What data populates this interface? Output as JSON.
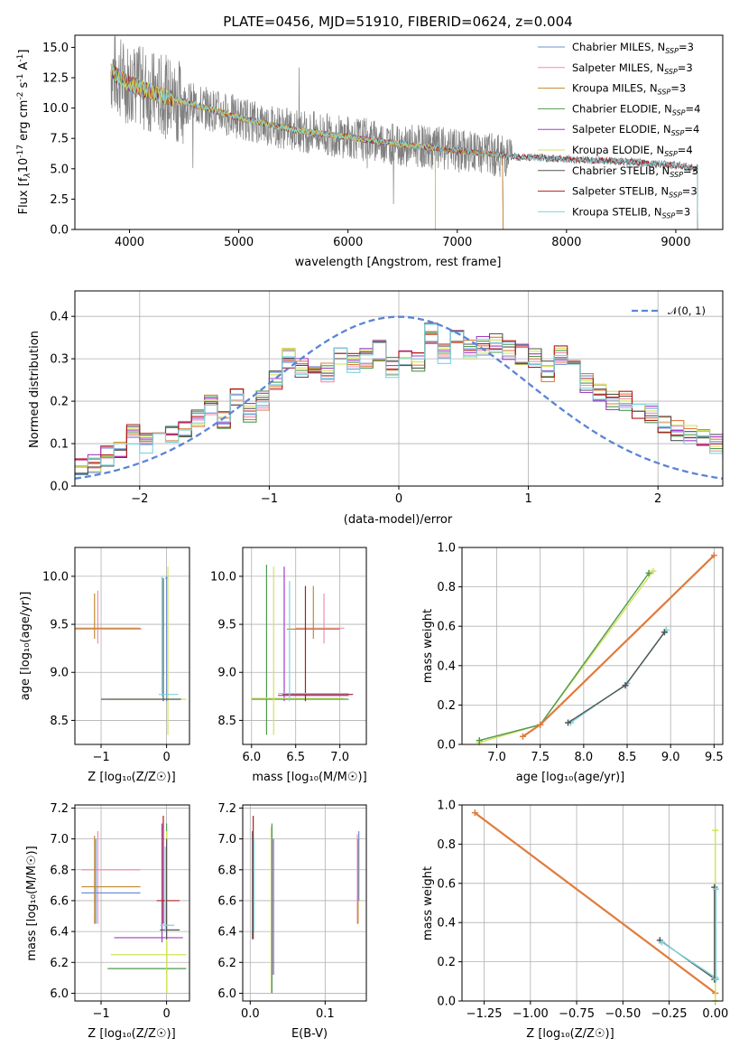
{
  "colors": {
    "model": [
      "#6f8fd3",
      "#f08fb0",
      "#c28a2e",
      "#4f9a4f",
      "#a43bc7",
      "#d2e35a",
      "#555555",
      "#b21b1b",
      "#7ed3df"
    ],
    "spectrum": "#808080",
    "normal_curve": "#5b84d6",
    "orange": "#e07b3c"
  },
  "chart_data": [
    {
      "type": "line",
      "title": "PLATE=0456, MJD=51910, FIBERID=0624, z=0.004",
      "xlabel": "wavelength [Angstrom, rest frame]",
      "ylabel": "Flux [f",
      "ylabel_parts": [
        "λ",
        "10",
        "-17",
        " erg cm",
        "-2",
        " s",
        "-1",
        " A",
        "-1",
        "]"
      ],
      "xlim": [
        3500,
        9430
      ],
      "ylim": [
        0,
        16
      ],
      "xticks": [
        "4000",
        "5000",
        "6000",
        "7000",
        "8000",
        "9000"
      ],
      "yticks": [
        "0.0",
        "2.5",
        "5.0",
        "7.5",
        "10.0",
        "12.5",
        "15.0"
      ],
      "legend_position": "top-right",
      "series": [
        {
          "name": "Chabrier MILES, N",
          "sub": "SSP",
          "suffix": "=3"
        },
        {
          "name": "Salpeter MILES, N",
          "sub": "SSP",
          "suffix": "=3"
        },
        {
          "name": "Kroupa MILES, N",
          "sub": "SSP",
          "suffix": "=3"
        },
        {
          "name": "Chabrier ELODIE, N",
          "sub": "SSP",
          "suffix": "=4"
        },
        {
          "name": "Salpeter ELODIE, N",
          "sub": "SSP",
          "suffix": "=4"
        },
        {
          "name": "Kroupa ELODIE, N",
          "sub": "SSP",
          "suffix": "=4"
        },
        {
          "name": "Chabrier STELIB, N",
          "sub": "SSP",
          "suffix": "=3"
        },
        {
          "name": "Salpeter STELIB, N",
          "sub": "SSP",
          "suffix": "=3"
        },
        {
          "name": "Kroupa STELIB, N",
          "sub": "SSP",
          "suffix": "=3"
        }
      ],
      "continuum": [
        [
          3830,
          13.0
        ],
        [
          4000,
          12.0
        ],
        [
          4300,
          11.0
        ],
        [
          4700,
          10.0
        ],
        [
          5000,
          9.2
        ],
        [
          5500,
          8.2
        ],
        [
          6000,
          7.6
        ],
        [
          6500,
          7.0
        ],
        [
          7000,
          6.5
        ],
        [
          7500,
          6.0
        ],
        [
          8000,
          5.8
        ],
        [
          8500,
          5.6
        ],
        [
          9000,
          5.3
        ],
        [
          9200,
          5.0
        ]
      ],
      "model_ranges": {
        "MILES": [
          3830,
          7420
        ],
        "ELODIE": [
          3830,
          6800
        ],
        "STELIB": [
          3830,
          9200
        ]
      }
    },
    {
      "type": "area",
      "xlabel": "(data-model)/error",
      "ylabel": "Normed distribution",
      "xlim": [
        -2.5,
        2.5
      ],
      "ylim": [
        0,
        0.46
      ],
      "xticks": [
        "−2",
        "−1",
        "0",
        "1",
        "2"
      ],
      "yticks": [
        "0.0",
        "0.1",
        "0.2",
        "0.3",
        "0.4"
      ],
      "legend": "𝒩(0, 1)",
      "legend_position": "top-right",
      "bin_width": 0.1,
      "histogram": [
        0.04,
        0.05,
        0.07,
        0.09,
        0.12,
        0.1,
        0.11,
        0.12,
        0.14,
        0.16,
        0.19,
        0.16,
        0.21,
        0.17,
        0.2,
        0.25,
        0.3,
        0.28,
        0.26,
        0.27,
        0.31,
        0.29,
        0.3,
        0.32,
        0.28,
        0.3,
        0.29,
        0.36,
        0.31,
        0.35,
        0.32,
        0.33,
        0.34,
        0.32,
        0.31,
        0.3,
        0.27,
        0.31,
        0.29,
        0.24,
        0.22,
        0.2,
        0.2,
        0.18,
        0.17,
        0.14,
        0.13,
        0.12,
        0.12,
        0.1,
        0.09,
        0.09,
        0.08,
        0.06,
        0.05,
        0.05,
        0.05,
        0.04,
        0.03,
        0.04
      ]
    },
    {
      "type": "scatter",
      "xlabel": "Z [log₁₀(Z/Z☉)]",
      "ylabel": "age  [log₁₀(age/yr)]",
      "xlim": [
        -1.4,
        0.35
      ],
      "ylim": [
        8.25,
        10.3
      ],
      "xticks": [
        "−1",
        "0"
      ],
      "yticks": [
        "8.5",
        "9.0",
        "9.5",
        "10.0"
      ],
      "crosses": [
        {
          "x": [
            -1.4,
            -0.38
          ],
          "y": 9.45,
          "yr": [
            9.3,
            9.85
          ],
          "xc": -1.05,
          "c": 1
        },
        {
          "x": [
            -1.4,
            -0.4
          ],
          "y": 9.46,
          "yr": [
            9.35,
            9.82
          ],
          "xc": -1.1,
          "c": 2
        },
        {
          "x": [
            -0.02,
            0.02
          ],
          "y": 9.98,
          "yr": [
            8.7,
            10.0
          ],
          "xc": 0.0,
          "c": 0
        },
        {
          "x": [
            -0.9,
            0.3
          ],
          "y": 8.72,
          "yr": [
            8.35,
            10.1
          ],
          "xc": 0.02,
          "c": 5
        },
        {
          "x": [
            -1.0,
            0.22
          ],
          "y": 8.72,
          "yr": [
            8.7,
            9.98
          ],
          "xc": -0.05,
          "c": 6
        },
        {
          "x": [
            -0.12,
            0.18
          ],
          "y": 8.77,
          "yr": [
            8.75,
            10.0
          ],
          "xc": -0.07,
          "c": 8
        }
      ]
    },
    {
      "type": "scatter",
      "xlabel": "mass [log₁₀(M/M☉)]",
      "ylabel": "",
      "xlim": [
        5.9,
        7.3
      ],
      "ylim": [
        8.25,
        10.3
      ],
      "xticks": [
        "6.0",
        "6.5",
        "7.0"
      ],
      "yticks": [
        "8.5",
        "9.0",
        "9.5",
        "10.0"
      ],
      "crosses": [
        {
          "x": [
            6.5,
            7.05
          ],
          "y": 9.46,
          "yr": [
            9.3,
            9.82
          ],
          "xc": 6.82,
          "c": 1
        },
        {
          "x": [
            6.4,
            7.0
          ],
          "y": 9.45,
          "yr": [
            9.35,
            9.9
          ],
          "xc": 6.7,
          "c": 2
        },
        {
          "x": [
            6.0,
            7.1
          ],
          "y": 8.72,
          "yr": [
            8.35,
            10.12
          ],
          "xc": 6.17,
          "c": 3
        },
        {
          "x": [
            6.3,
            7.1
          ],
          "y": 8.76,
          "yr": [
            8.7,
            10.1
          ],
          "xc": 6.37,
          "c": 4
        },
        {
          "x": [
            6.0,
            7.05
          ],
          "y": 8.73,
          "yr": [
            8.35,
            10.1
          ],
          "xc": 6.25,
          "c": 5
        },
        {
          "x": [
            6.35,
            7.15
          ],
          "y": 8.77,
          "yr": [
            8.7,
            9.9
          ],
          "xc": 6.61,
          "c": 7
        },
        {
          "x": [
            6.3,
            7.1
          ],
          "y": 8.78,
          "yr": [
            8.7,
            9.95
          ],
          "xc": 6.43,
          "c": 8
        }
      ]
    },
    {
      "type": "scatter",
      "xlabel": "age  [log₁₀(age/yr)]",
      "ylabel": "mass weight",
      "xlim": [
        6.6,
        9.6
      ],
      "ylim": [
        0,
        1
      ],
      "xticks": [
        "7.0",
        "7.5",
        "8.0",
        "8.5",
        "9.0",
        "9.5"
      ],
      "yticks": [
        "0.0",
        "0.2",
        "0.4",
        "0.6",
        "0.8",
        "1.0"
      ],
      "lines": [
        {
          "pts": [
            [
              6.8,
              0.01
            ],
            [
              7.5,
              0.1
            ],
            [
              8.8,
              0.88
            ]
          ],
          "c": 5
        },
        {
          "pts": [
            [
              6.8,
              0.02
            ],
            [
              7.5,
              0.1
            ],
            [
              8.75,
              0.87
            ]
          ],
          "c": 3
        },
        {
          "pts": [
            [
              7.3,
              0.04
            ],
            [
              7.5,
              0.1
            ],
            [
              9.5,
              0.96
            ]
          ],
          "c": 9
        },
        {
          "pts": [
            [
              7.85,
              0.11
            ],
            [
              8.5,
              0.31
            ],
            [
              8.95,
              0.58
            ]
          ],
          "c": 8
        },
        {
          "pts": [
            [
              7.82,
              0.11
            ],
            [
              8.48,
              0.3
            ],
            [
              8.93,
              0.57
            ]
          ],
          "c": 6
        }
      ]
    },
    {
      "type": "scatter",
      "xlabel": "Z [log₁₀(Z/Z☉)]",
      "ylabel": "mass [log₁₀(M/M☉)]",
      "xlim": [
        -1.4,
        0.35
      ],
      "ylim": [
        5.95,
        7.22
      ],
      "xticks": [
        "−1",
        "0"
      ],
      "yticks": [
        "6.0",
        "6.2",
        "6.4",
        "6.6",
        "6.8",
        "7.0",
        "7.2"
      ],
      "crosses": [
        {
          "x": [
            -1.3,
            -0.4
          ],
          "y": 6.8,
          "yr": [
            6.45,
            7.05
          ],
          "xc": -1.05,
          "c": 1
        },
        {
          "x": [
            -1.3,
            -0.4
          ],
          "y": 6.69,
          "yr": [
            6.45,
            7.02
          ],
          "xc": -1.1,
          "c": 2
        },
        {
          "x": [
            -1.3,
            -0.4
          ],
          "y": 6.65,
          "yr": [
            6.45,
            7.0
          ],
          "xc": -1.08,
          "c": 0
        },
        {
          "x": [
            -0.9,
            0.3
          ],
          "y": 6.16,
          "yr": [
            6.0,
            7.1
          ],
          "xc": 0.0,
          "c": 3
        },
        {
          "x": [
            -0.85,
            0.3
          ],
          "y": 6.25,
          "yr": [
            6.0,
            7.05
          ],
          "xc": 0.0,
          "c": 5
        },
        {
          "x": [
            -0.8,
            0.25
          ],
          "y": 6.36,
          "yr": [
            6.33,
            7.1
          ],
          "xc": -0.07,
          "c": 4
        },
        {
          "x": [
            -0.15,
            0.2
          ],
          "y": 6.6,
          "yr": [
            6.45,
            7.15
          ],
          "xc": -0.05,
          "c": 7
        },
        {
          "x": [
            -0.1,
            0.2
          ],
          "y": 6.41,
          "yr": [
            6.35,
            7.0
          ],
          "xc": 0.0,
          "c": 6
        },
        {
          "x": [
            -0.1,
            0.12
          ],
          "y": 6.44,
          "yr": [
            6.4,
            6.95
          ],
          "xc": -0.02,
          "c": 8
        }
      ]
    },
    {
      "type": "scatter",
      "xlabel": "E(B-V)",
      "ylabel": "",
      "xlim": [
        -0.01,
        0.155
      ],
      "ylim": [
        5.95,
        7.22
      ],
      "xticks": [
        "0.0",
        "0.1"
      ],
      "yticks": [
        "6.0",
        "6.2",
        "6.4",
        "6.6",
        "6.8",
        "7.0",
        "7.2"
      ],
      "vlines": [
        {
          "x": 0.004,
          "y": [
            6.35,
            7.15
          ],
          "c": 7
        },
        {
          "x": 0.003,
          "y": [
            6.35,
            7.05
          ],
          "c": 6
        },
        {
          "x": 0.005,
          "y": [
            6.4,
            7.0
          ],
          "c": 8
        },
        {
          "x": 0.028,
          "y": [
            6.0,
            7.08
          ],
          "c": 5
        },
        {
          "x": 0.029,
          "y": [
            6.0,
            7.1
          ],
          "c": 3
        },
        {
          "x": 0.031,
          "y": [
            6.12,
            7.0
          ],
          "c": 4
        },
        {
          "x": 0.143,
          "y": [
            6.45,
            7.03
          ],
          "c": 1
        },
        {
          "x": 0.144,
          "y": [
            6.45,
            7.0
          ],
          "c": 2
        },
        {
          "x": 0.145,
          "y": [
            6.6,
            7.05
          ],
          "c": 0
        }
      ]
    },
    {
      "type": "scatter",
      "xlabel": "Z [log₁₀(Z/Z☉)]",
      "ylabel": "mass weight",
      "xlim": [
        -1.37,
        0.04
      ],
      "ylim": [
        0,
        1
      ],
      "xticks": [
        "−1.25",
        "−1.00",
        "−0.75",
        "−0.50",
        "−0.25",
        "0.00"
      ],
      "yticks": [
        "0.0",
        "0.2",
        "0.4",
        "0.6",
        "0.8",
        "1.0"
      ],
      "lines": [
        {
          "pts": [
            [
              -1.3,
              0.96
            ],
            [
              0.0,
              0.04
            ]
          ],
          "c": 9
        },
        {
          "pts": [
            [
              -0.3,
              0.31
            ],
            [
              0.0,
              0.11
            ]
          ],
          "c": 6
        },
        {
          "pts": [
            [
              -0.29,
              0.3
            ],
            [
              0.0,
              0.12
            ]
          ],
          "c": 8
        },
        {
          "pts": [
            [
              0.0,
              0.0
            ],
            [
              0.0,
              0.87
            ]
          ],
          "c": 5
        },
        {
          "pts": [
            [
              -0.005,
              0.11
            ],
            [
              -0.005,
              0.58
            ]
          ],
          "c": 6
        },
        {
          "pts": [
            [
              0.003,
              0.11
            ],
            [
              0.003,
              0.57
            ]
          ],
          "c": 8
        }
      ]
    }
  ]
}
